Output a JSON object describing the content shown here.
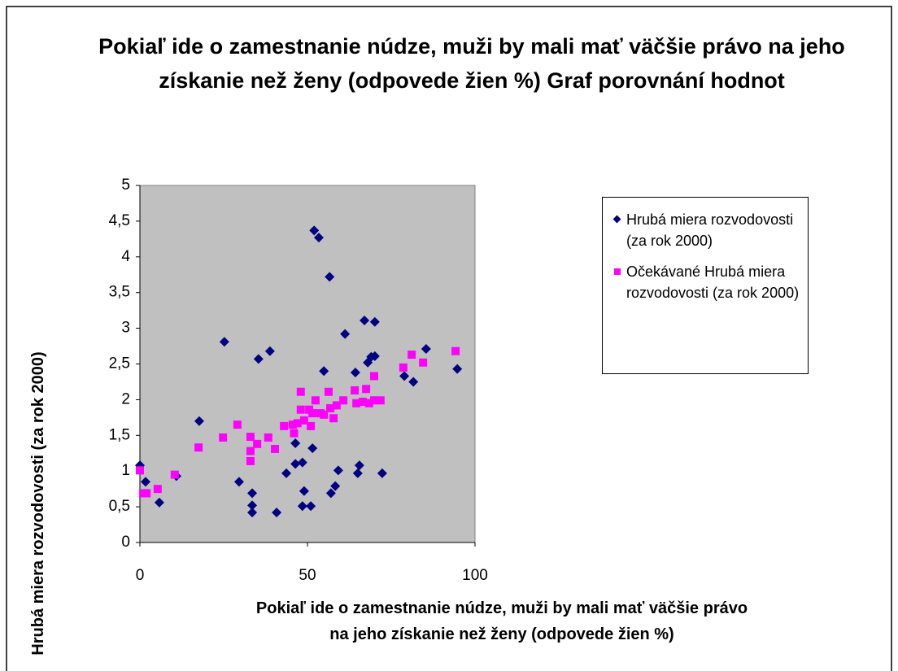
{
  "chart_data": {
    "type": "scatter",
    "title": "Pokiaľ ide o zamestnanie núdze, muži by mali mať väčšie právo na jeho získanie než ženy (odpovede žien %) Graf porovnání hodnot",
    "xlabel": "Pokiaľ ide o zamestnanie núdze, muži by mali mať väčšie právo na jeho získanie než ženy (odpovede žien %)",
    "ylabel": "Hrubá miera rozvodovosti (za rok 2000)",
    "xlim": [
      0,
      100
    ],
    "xticks": [
      0,
      50,
      100
    ],
    "ylim": [
      0,
      5
    ],
    "yticks": [
      0,
      {
        "value": 0.5,
        "label": "0,5"
      },
      1,
      {
        "value": 1.5,
        "label": "1,5"
      },
      2,
      {
        "value": 2.5,
        "label": "2,5"
      },
      3,
      {
        "value": 3.5,
        "label": "3,5"
      },
      4,
      {
        "value": 4.5,
        "label": "4,5"
      },
      5
    ],
    "grid": false,
    "legend": "right",
    "series": [
      {
        "name": "Hrubá miera rozvodovosti (za rok 2000)",
        "color": "#000080",
        "marker": "diamond",
        "x": [
          0,
          1.7,
          5.8,
          10.9,
          17.7,
          25.2,
          29.6,
          33.5,
          33.5,
          33.5,
          35.4,
          38.8,
          40.8,
          43.7,
          46.4,
          46.4,
          48.5,
          48.5,
          49,
          51,
          51.5,
          52,
          53.4,
          54.9,
          56.6,
          57,
          58.3,
          59.2,
          61.2,
          64.3,
          65,
          65.5,
          67,
          68,
          69,
          70.1,
          70.1,
          72.3,
          78.9,
          81.6,
          85.4,
          94.7
        ],
        "values": [
          1.08,
          0.85,
          0.56,
          0.93,
          1.7,
          2.81,
          0.85,
          0.42,
          0.52,
          0.69,
          2.57,
          2.68,
          0.42,
          0.97,
          1.39,
          1.1,
          1.12,
          0.51,
          0.72,
          0.51,
          1.32,
          4.37,
          4.27,
          2.4,
          3.72,
          0.69,
          0.79,
          1.01,
          2.92,
          2.38,
          0.97,
          1.08,
          3.11,
          2.52,
          2.6,
          3.09,
          2.61,
          0.97,
          2.33,
          2.25,
          2.71,
          2.43
        ]
      },
      {
        "name": "Očekávané Hrubá miera rozvodovosti (za rok 2000)",
        "color": "#ff00ff",
        "marker": "square",
        "x": [
          0,
          1,
          2,
          5.3,
          10.4,
          17.5,
          24.8,
          29.1,
          33,
          33,
          33,
          35,
          38.3,
          40.3,
          43,
          45.6,
          46,
          47,
          48,
          48,
          49,
          50.5,
          51,
          51.5,
          52.4,
          53.9,
          54.9,
          56.3,
          56.8,
          57.8,
          58.7,
          60.7,
          64.1,
          64.6,
          66.5,
          67.5,
          68.4,
          69.9,
          69.9,
          71.8,
          78.6,
          81.1,
          84.5,
          94.2
        ],
        "values": [
          1.01,
          0.69,
          0.69,
          0.75,
          0.95,
          1.33,
          1.47,
          1.65,
          1.48,
          1.28,
          1.14,
          1.38,
          1.47,
          1.31,
          1.63,
          1.65,
          1.53,
          1.67,
          2.11,
          1.86,
          1.71,
          1.86,
          1.63,
          1.81,
          1.99,
          1.81,
          1.79,
          2.11,
          1.88,
          1.74,
          1.92,
          1.99,
          2.13,
          1.95,
          1.97,
          2.15,
          1.95,
          2.33,
          1.99,
          1.99,
          2.45,
          2.63,
          2.52,
          2.68
        ]
      }
    ]
  }
}
